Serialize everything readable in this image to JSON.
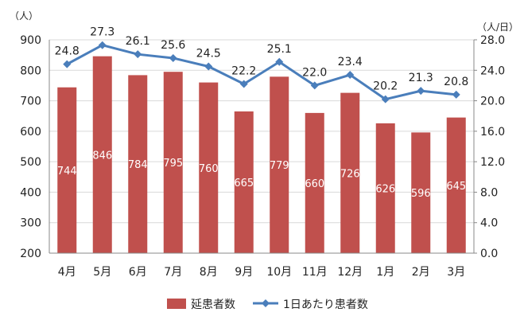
{
  "chart_data": {
    "type": "bar+line",
    "categories": [
      "4月",
      "5月",
      "6月",
      "7月",
      "8月",
      "9月",
      "10月",
      "11月",
      "12月",
      "1月",
      "2月",
      "3月"
    ],
    "series": [
      {
        "name": "延患者数",
        "type": "bar",
        "axis": "left",
        "values": [
          744,
          846,
          784,
          795,
          760,
          665,
          779,
          660,
          726,
          626,
          596,
          645
        ],
        "color": "#c0504d"
      },
      {
        "name": "1日あたり患者数",
        "type": "line",
        "axis": "right",
        "values": [
          24.8,
          27.3,
          26.1,
          25.6,
          24.5,
          22.2,
          25.1,
          22.0,
          23.4,
          20.2,
          21.3,
          20.8
        ],
        "value_labels": [
          "24.8",
          "27.3",
          "26.1",
          "25.6",
          "24.5",
          "22.2",
          "25.1",
          "22.0",
          "23.4",
          "20.2",
          "21.3",
          "20.8"
        ],
        "color": "#4a7ebb"
      }
    ],
    "y_left": {
      "unit": "（人）",
      "ylim": [
        200,
        900
      ],
      "ticks": [
        "200",
        "300",
        "400",
        "500",
        "600",
        "700",
        "800",
        "900"
      ]
    },
    "y_right": {
      "unit": "（人/日）",
      "ylim": [
        0,
        28
      ],
      "ticks": [
        "0.0",
        "4.0",
        "8.0",
        "12.0",
        "16.0",
        "20.0",
        "24.0",
        "28.0"
      ]
    },
    "grid": true,
    "legend_position": "bottom"
  }
}
